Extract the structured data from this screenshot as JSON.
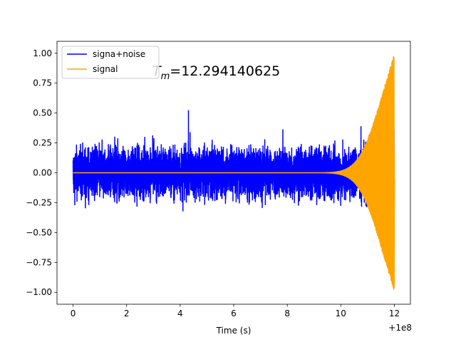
{
  "chart_data": {
    "type": "line",
    "title": "",
    "xlabel": "Time (s)",
    "ylabel": "",
    "x_offset_label": "+1e8",
    "xlim": [
      -0.6,
      12.6
    ],
    "ylim": [
      -1.1,
      1.1
    ],
    "xticks": [
      0,
      2,
      4,
      6,
      8,
      10,
      12
    ],
    "xtick_labels": [
      "0",
      "2",
      "4",
      "6",
      "8",
      "10",
      "12"
    ],
    "yticks": [
      -1.0,
      -0.75,
      -0.5,
      -0.25,
      0.0,
      0.25,
      0.5,
      0.75,
      1.0
    ],
    "ytick_labels": [
      "−1.00",
      "−0.75",
      "−0.50",
      "−0.25",
      "0.00",
      "0.25",
      "0.50",
      "0.75",
      "1.00"
    ],
    "legend_position": "top-left",
    "annotation": {
      "prefix": "T",
      "subscript": "m",
      "suffix": "=12.294140625"
    },
    "series": [
      {
        "name": "signa+noise",
        "color": "#0000ff",
        "x_range": [
          0,
          12
        ],
        "noise_amplitude": 0.45,
        "peak_max": 1.0,
        "peak_min": -1.01
      },
      {
        "name": "signal",
        "color": "#ffa500",
        "x_range": [
          0,
          12
        ],
        "y_max": 1.0,
        "y_min": -1.01,
        "merger_time": 12.294140625
      }
    ]
  }
}
